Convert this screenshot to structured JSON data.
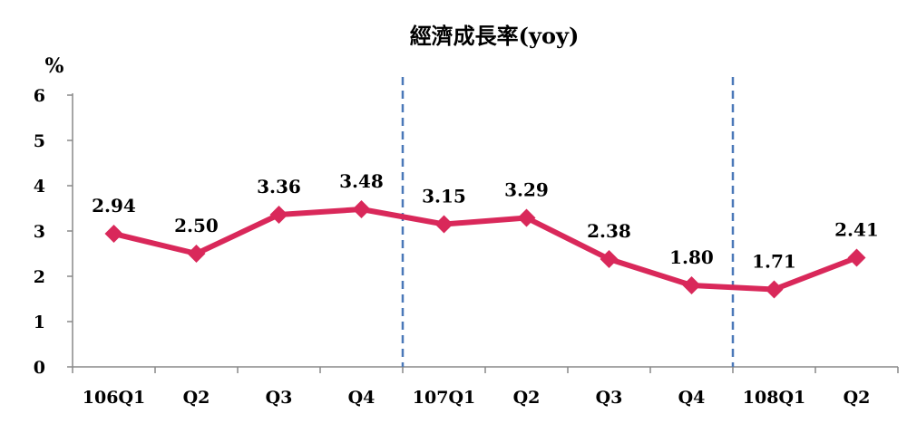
{
  "chart_data": {
    "type": "line",
    "title": "經濟成長率(yoy)",
    "ylabel": "%",
    "xlabel": "",
    "categories": [
      "106Q1",
      "Q2",
      "Q3",
      "Q4",
      "107Q1",
      "Q2",
      "Q3",
      "Q4",
      "108Q1",
      "Q2"
    ],
    "series": [
      {
        "values": [
          2.94,
          2.5,
          3.36,
          3.48,
          3.15,
          3.29,
          2.38,
          1.8,
          1.71,
          2.41
        ],
        "labels": [
          "2.94",
          "2.50",
          "3.36",
          "3.48",
          "3.15",
          "3.29",
          "2.38",
          "1.80",
          "1.71",
          "2.41"
        ],
        "color": "#D9285A"
      }
    ],
    "ylim": [
      0,
      6
    ],
    "yticks": [
      "0",
      "1",
      "2",
      "3",
      "4",
      "5",
      "6"
    ],
    "year_dividers_after": [
      "Q4",
      "Q4"
    ],
    "divider_color": "#4A78B8",
    "grid": false,
    "legend": "none"
  }
}
